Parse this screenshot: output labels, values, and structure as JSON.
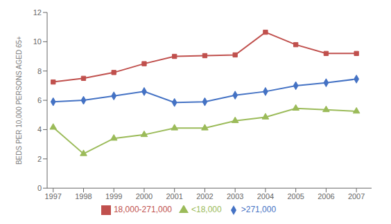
{
  "chart_data": {
    "type": "line",
    "x": [
      1997,
      1998,
      1999,
      2000,
      2001,
      2002,
      2003,
      2004,
      2005,
      2006,
      2007
    ],
    "xlim": [
      1996.8,
      2007.5
    ],
    "xticks": [
      1997,
      1998,
      1999,
      2000,
      2001,
      2002,
      2003,
      2004,
      2005,
      2006,
      2007
    ],
    "ylim": [
      0,
      12
    ],
    "yticks": [
      0,
      2,
      4,
      6,
      8,
      10,
      12
    ],
    "ylabel": "BEDS PER 10,000 PERSONS AGED 65+",
    "grid": false,
    "legend": "bottom",
    "series": [
      {
        "name": ">271,000",
        "color": "#4472C4",
        "marker": "diamond",
        "values": [
          5.9,
          6.0,
          6.3,
          6.6,
          5.85,
          5.9,
          6.35,
          6.6,
          7.0,
          7.2,
          7.45
        ]
      },
      {
        "name": "18,000-271,000",
        "color": "#C0504D",
        "marker": "square",
        "values": [
          7.25,
          7.5,
          7.9,
          8.5,
          9.0,
          9.05,
          9.1,
          10.65,
          9.8,
          9.2,
          9.2
        ]
      },
      {
        "name": "<18,000",
        "color": "#9BBB59",
        "marker": "triangle",
        "values": [
          4.15,
          2.35,
          3.4,
          3.65,
          4.1,
          4.1,
          4.6,
          4.85,
          5.45,
          5.35,
          5.25
        ]
      }
    ]
  }
}
